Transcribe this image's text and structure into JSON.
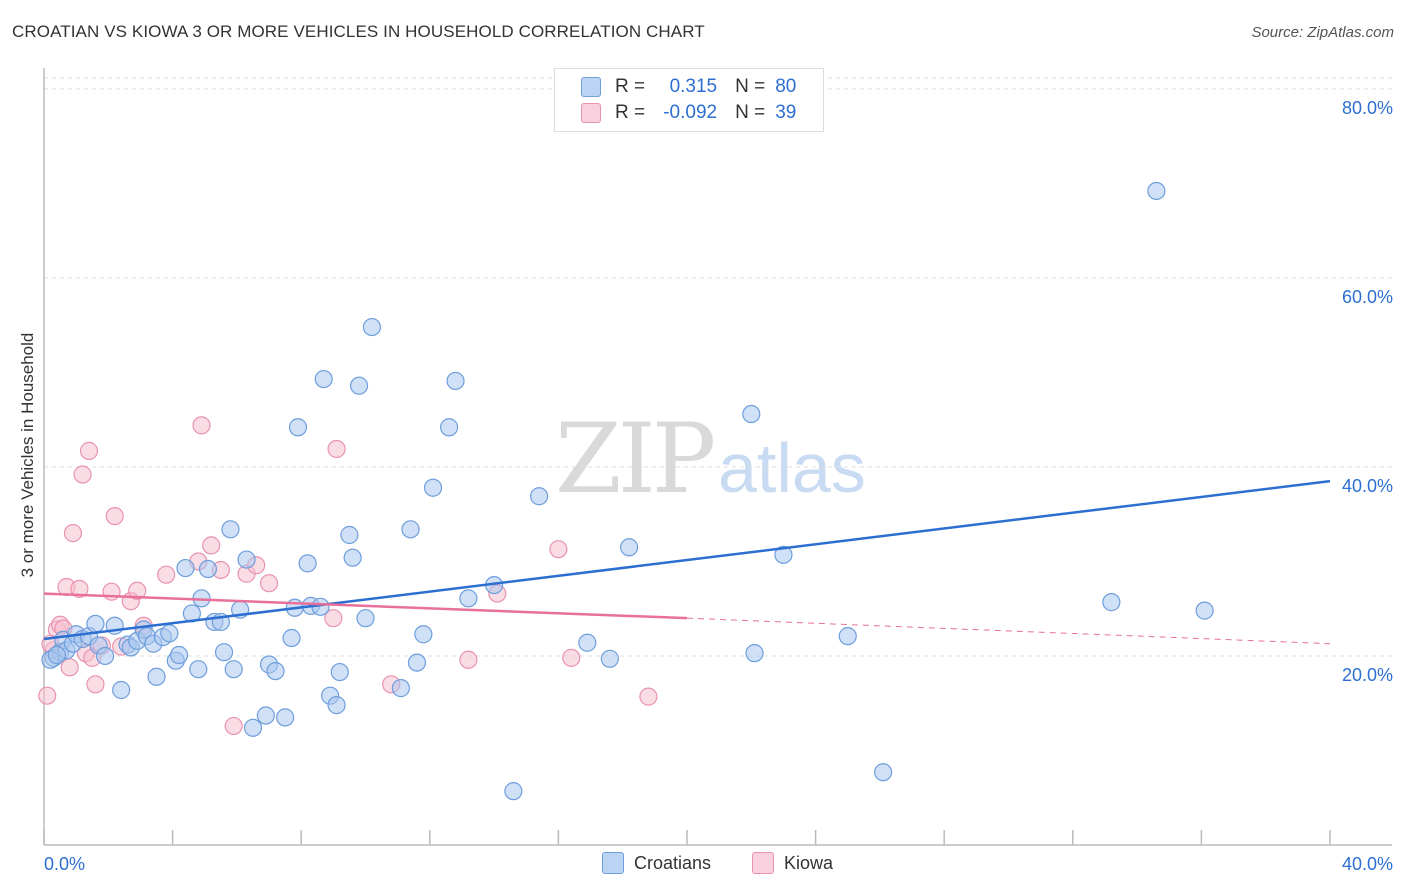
{
  "title": "CROATIAN VS KIOWA 3 OR MORE VEHICLES IN HOUSEHOLD CORRELATION CHART",
  "source": "Source: ZipAtlas.com",
  "watermark": {
    "zip": "ZIP",
    "atlas": "atlas"
  },
  "legend": {
    "r_label": "R =",
    "n_label": "N =",
    "croatians": {
      "r": "0.315",
      "n": "80"
    },
    "kiowa": {
      "r": "-0.092",
      "n": "39"
    }
  },
  "bottom_legend": {
    "croatians": "Croatians",
    "kiowa": "Kiowa"
  },
  "colors": {
    "croatians_fill": "#a9c7ef",
    "croatians_stroke": "#6e9edc",
    "croatians_line": "#2d6fd1",
    "kiowa_fill": "#f6bfd0",
    "kiowa_stroke": "#e993ae",
    "kiowa_line": "#e8709a",
    "tick_label": "#2d6fd1"
  },
  "chart_data": {
    "type": "scatter",
    "ylabel": "3 or more Vehicles in Household",
    "xlim": [
      0,
      40
    ],
    "ylim": [
      0,
      82
    ],
    "x_tick_labels": [
      "0.0%",
      "40.0%"
    ],
    "y_ticks": [
      20,
      40,
      60,
      80
    ],
    "y_tick_labels": [
      "20.0%",
      "40.0%",
      "60.0%",
      "80.0%"
    ],
    "grid": true,
    "series": [
      {
        "name": "Croatians",
        "points": [
          [
            0.3,
            19.8
          ],
          [
            0.5,
            20.4
          ],
          [
            0.6,
            21.7
          ],
          [
            0.7,
            20.6
          ],
          [
            0.9,
            21.3
          ],
          [
            1.0,
            22.3
          ],
          [
            1.2,
            21.8
          ],
          [
            1.4,
            22.1
          ],
          [
            1.6,
            23.4
          ],
          [
            1.7,
            21.1
          ],
          [
            1.9,
            20.0
          ],
          [
            2.2,
            23.2
          ],
          [
            2.4,
            16.4
          ],
          [
            2.6,
            21.2
          ],
          [
            2.7,
            20.9
          ],
          [
            2.9,
            21.6
          ],
          [
            3.1,
            22.8
          ],
          [
            3.2,
            22.1
          ],
          [
            3.4,
            21.3
          ],
          [
            3.5,
            17.8
          ],
          [
            3.7,
            22.0
          ],
          [
            3.9,
            22.4
          ],
          [
            4.1,
            19.5
          ],
          [
            4.2,
            20.1
          ],
          [
            4.4,
            29.3
          ],
          [
            4.6,
            24.5
          ],
          [
            4.8,
            18.6
          ],
          [
            4.9,
            26.1
          ],
          [
            5.1,
            29.2
          ],
          [
            5.3,
            23.6
          ],
          [
            5.5,
            23.6
          ],
          [
            5.6,
            20.4
          ],
          [
            5.8,
            33.4
          ],
          [
            5.9,
            18.6
          ],
          [
            6.1,
            24.9
          ],
          [
            6.3,
            30.2
          ],
          [
            6.5,
            12.4
          ],
          [
            6.9,
            13.7
          ],
          [
            7.0,
            19.1
          ],
          [
            7.2,
            18.4
          ],
          [
            7.5,
            13.5
          ],
          [
            7.7,
            21.9
          ],
          [
            7.8,
            25.1
          ],
          [
            7.9,
            44.2
          ],
          [
            8.2,
            29.8
          ],
          [
            8.3,
            25.3
          ],
          [
            8.6,
            25.2
          ],
          [
            8.7,
            49.3
          ],
          [
            8.9,
            15.8
          ],
          [
            9.1,
            14.8
          ],
          [
            9.2,
            18.3
          ],
          [
            9.5,
            32.8
          ],
          [
            9.6,
            30.4
          ],
          [
            9.8,
            48.6
          ],
          [
            10.0,
            24.0
          ],
          [
            10.2,
            54.8
          ],
          [
            11.1,
            16.6
          ],
          [
            11.4,
            33.4
          ],
          [
            11.6,
            19.3
          ],
          [
            11.8,
            22.3
          ],
          [
            12.1,
            37.8
          ],
          [
            12.6,
            44.2
          ],
          [
            12.8,
            49.1
          ],
          [
            13.2,
            26.1
          ],
          [
            14.0,
            27.5
          ],
          [
            14.6,
            5.7
          ],
          [
            15.4,
            36.9
          ],
          [
            16.9,
            21.4
          ],
          [
            17.6,
            19.7
          ],
          [
            18.2,
            31.5
          ],
          [
            22.0,
            45.6
          ],
          [
            22.1,
            20.3
          ],
          [
            23.0,
            30.7
          ],
          [
            25.0,
            22.1
          ],
          [
            26.1,
            7.7
          ],
          [
            33.2,
            25.7
          ],
          [
            34.6,
            69.2
          ],
          [
            36.1,
            24.8
          ],
          [
            0.2,
            19.6
          ],
          [
            0.4,
            20.1
          ]
        ]
      },
      {
        "name": "Kiowa",
        "points": [
          [
            0.1,
            15.8
          ],
          [
            0.3,
            20.6
          ],
          [
            0.4,
            22.8
          ],
          [
            0.5,
            23.3
          ],
          [
            0.6,
            22.9
          ],
          [
            0.7,
            27.3
          ],
          [
            0.8,
            18.8
          ],
          [
            0.9,
            33.0
          ],
          [
            1.1,
            27.1
          ],
          [
            1.2,
            39.2
          ],
          [
            1.3,
            20.3
          ],
          [
            1.4,
            41.7
          ],
          [
            1.5,
            19.8
          ],
          [
            1.6,
            17.0
          ],
          [
            1.8,
            21.1
          ],
          [
            2.1,
            26.8
          ],
          [
            2.2,
            34.8
          ],
          [
            2.4,
            21.0
          ],
          [
            2.7,
            25.8
          ],
          [
            2.9,
            26.9
          ],
          [
            3.1,
            23.2
          ],
          [
            3.8,
            28.6
          ],
          [
            4.8,
            30.0
          ],
          [
            4.9,
            44.4
          ],
          [
            5.2,
            31.7
          ],
          [
            5.5,
            29.1
          ],
          [
            5.9,
            12.6
          ],
          [
            6.3,
            28.7
          ],
          [
            6.6,
            29.6
          ],
          [
            7.0,
            27.7
          ],
          [
            9.0,
            24.0
          ],
          [
            9.1,
            41.9
          ],
          [
            10.8,
            17.0
          ],
          [
            13.2,
            19.6
          ],
          [
            14.1,
            26.6
          ],
          [
            16.0,
            31.3
          ],
          [
            16.4,
            19.8
          ],
          [
            18.8,
            15.7
          ],
          [
            0.2,
            21.3
          ]
        ]
      }
    ],
    "trend_lines": [
      {
        "series": "Croatians",
        "x": [
          0,
          40
        ],
        "y": [
          21.8,
          38.5
        ],
        "style": "solid"
      },
      {
        "series": "Kiowa",
        "x": [
          0,
          20
        ],
        "y": [
          26.6,
          24.0
        ],
        "style": "solid"
      },
      {
        "series": "Kiowa",
        "x": [
          20,
          40
        ],
        "y": [
          24.0,
          21.3
        ],
        "style": "dashed"
      }
    ]
  }
}
